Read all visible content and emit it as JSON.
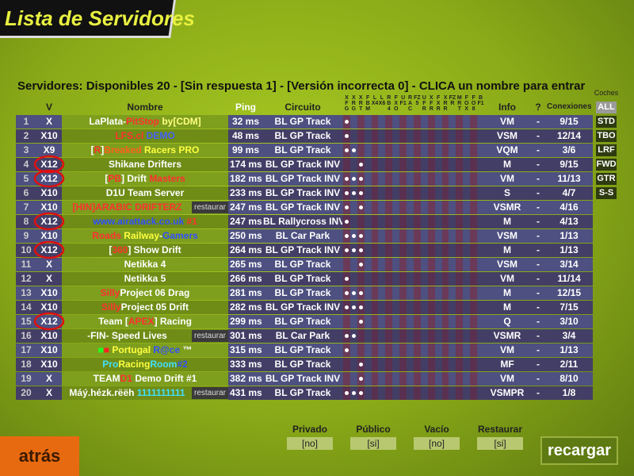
{
  "title": "Lista de Servidores",
  "status": "Servidores: Disponibles 20 - [Sin respuesta 1] - [Versión incorrecta 0] - CLICA un nombre para entrar",
  "headers": {
    "v": "V",
    "name": "Nombre",
    "ping": "Ping",
    "circuit": "Circuito",
    "info": "Info",
    "help": "?",
    "conns": "Conexiones"
  },
  "car_columns": [
    "XFG",
    "XRG",
    "XRT",
    "FBM",
    "LX4",
    "LX6",
    "RB4",
    "FXO",
    "UF1",
    "RAC",
    "FZ5",
    "UFR",
    "XFR",
    "FXR",
    "XRR",
    "FZR",
    "MRT",
    "FOX",
    "FO8",
    "BF1"
  ],
  "rows": [
    {
      "num": 1,
      "v": "X",
      "name": [
        {
          "text": "LaPlata-",
          "color": "#ffffff"
        },
        {
          "text": "PitStop",
          "color": "#ff3030"
        },
        {
          "text": " by[CDM]",
          "color": "#ffff80"
        }
      ],
      "ping": "32 ms",
      "circuit": "BL GP Track",
      "cars": [
        0
      ],
      "info": "VM",
      "help": "-",
      "conns": "9/15"
    },
    {
      "num": 2,
      "v": "X10",
      "name": [
        {
          "text": "LFS.cl",
          "color": "#ff3030"
        },
        {
          "text": " DEMO",
          "color": "#4060ff"
        }
      ],
      "ping": "48 ms",
      "circuit": "BL GP Track",
      "cars": [
        0
      ],
      "info": "VSM",
      "help": "-",
      "conns": "12/14"
    },
    {
      "num": 3,
      "v": "X9",
      "name": [
        {
          "text": "[",
          "color": "#ffffff"
        },
        {
          "text": "R",
          "color": "#ff3030"
        },
        {
          "text": "]",
          "color": "#ffffff"
        },
        {
          "text": "Breaked",
          "color": "#ff6020"
        },
        {
          "text": " Racers PRO",
          "color": "#ffff40"
        }
      ],
      "ping": "99 ms",
      "circuit": "BL GP Track",
      "cars": [
        0,
        1
      ],
      "info": "VQM",
      "help": "-",
      "conns": "3/6"
    },
    {
      "num": 4,
      "v": "X12",
      "name": [
        {
          "text": "Shikane Drifters",
          "color": "#ffffff"
        }
      ],
      "ping": "174 ms",
      "circuit": "BL GP Track INV",
      "cars": [
        2
      ],
      "info": "M",
      "help": "-",
      "conns": "9/15"
    },
    {
      "num": 5,
      "v": "X12",
      "name": [
        {
          "text": "[",
          "color": "#ffffff"
        },
        {
          "text": "PB",
          "color": "#ff3030"
        },
        {
          "text": "] Drift ",
          "color": "#ffffff"
        },
        {
          "text": "Masters",
          "color": "#ff3030"
        }
      ],
      "ping": "182 ms",
      "circuit": "BL GP Track INV",
      "cars": [
        0,
        1,
        2
      ],
      "info": "VM",
      "help": "-",
      "conns": "11/13"
    },
    {
      "num": 6,
      "v": "X10",
      "name": [
        {
          "text": "D1U Team Server",
          "color": "#ffffff"
        }
      ],
      "ping": "233 ms",
      "circuit": "BL GP Track INV",
      "cars": [
        0,
        1,
        2
      ],
      "info": "S",
      "help": "-",
      "conns": "4/7"
    },
    {
      "num": 7,
      "v": "X10",
      "name": [
        {
          "text": "[HIN]ARABIC DRIFTERZ",
          "color": "#ff3030"
        }
      ],
      "tag": "restaurar",
      "ping": "247 ms",
      "circuit": "BL GP Track INV",
      "cars": [
        0,
        2
      ],
      "info": "VSMR",
      "help": "-",
      "conns": "4/16"
    },
    {
      "num": 8,
      "v": "X12",
      "name": [
        {
          "text": "www.airattack.co.uk",
          "color": "#3050ff"
        },
        {
          "text": " #1",
          "color": "#ff3030"
        }
      ],
      "ping": "247 ms",
      "circuit": "BL Rallycross INV",
      "cars": [
        0
      ],
      "info": "M",
      "help": "-",
      "conns": "4/13"
    },
    {
      "num": 9,
      "v": "X10",
      "name": [
        {
          "text": "Roads ",
          "color": "#ff3030"
        },
        {
          "text": "Railway",
          "color": "#ffff40"
        },
        {
          "text": "-",
          "color": "#ffffff"
        },
        {
          "text": "Gamers",
          "color": "#3050ff"
        }
      ],
      "ping": "250 ms",
      "circuit": "BL Car Park",
      "cars": [
        0,
        1,
        2
      ],
      "info": "VSM",
      "help": "-",
      "conns": "1/13"
    },
    {
      "num": 10,
      "v": "X12",
      "name": [
        {
          "text": "[",
          "color": "#ffffff"
        },
        {
          "text": "360",
          "color": "#ff3030"
        },
        {
          "text": "] Show Drift",
          "color": "#ffffff"
        }
      ],
      "ping": "264 ms",
      "circuit": "BL GP Track INV",
      "cars": [
        0,
        1,
        2
      ],
      "info": "M",
      "help": "-",
      "conns": "1/13"
    },
    {
      "num": 11,
      "v": "X",
      "name": [
        {
          "text": "Netikka 4",
          "color": "#ffffff"
        }
      ],
      "ping": "265 ms",
      "circuit": "BL GP Track",
      "cars": [
        2
      ],
      "info": "VSM",
      "help": "-",
      "conns": "3/14"
    },
    {
      "num": 12,
      "v": "X",
      "name": [
        {
          "text": "Netikka 5",
          "color": "#ffffff"
        }
      ],
      "ping": "266 ms",
      "circuit": "BL GP Track",
      "cars": [
        0
      ],
      "info": "VM",
      "help": "-",
      "conns": "11/14"
    },
    {
      "num": 13,
      "v": "X10",
      "name": [
        {
          "text": "Silly",
          "color": "#ff3030"
        },
        {
          "text": "Project 06 Drag",
          "color": "#ffffff"
        }
      ],
      "ping": "281 ms",
      "circuit": "BL GP Track",
      "cars": [
        0,
        1,
        2
      ],
      "info": "M",
      "help": "-",
      "conns": "12/15"
    },
    {
      "num": 14,
      "v": "X10",
      "name": [
        {
          "text": "Silly",
          "color": "#ff3030"
        },
        {
          "text": "Project 05 Drift",
          "color": "#ffffff"
        }
      ],
      "ping": "282 ms",
      "circuit": "BL GP Track INV",
      "cars": [
        0,
        1,
        2
      ],
      "info": "M",
      "help": "-",
      "conns": "7/15"
    },
    {
      "num": 15,
      "v": "X12",
      "name": [
        {
          "text": "Team [",
          "color": "#ffffff"
        },
        {
          "text": "APEX",
          "color": "#ff3030"
        },
        {
          "text": "] Racing",
          "color": "#ffffff"
        }
      ],
      "ping": "299 ms",
      "circuit": "BL GP Track",
      "cars": [
        2
      ],
      "info": "Q",
      "help": "-",
      "conns": "3/10"
    },
    {
      "num": 16,
      "v": "X10",
      "name": [
        {
          "text": "-FIN- Speed Lives",
          "color": "#ffffff"
        }
      ],
      "tag": "restaurar",
      "ping": "301 ms",
      "circuit": "BL Car Park",
      "cars": [
        0,
        1
      ],
      "info": "VSMR",
      "help": "-",
      "conns": "3/4"
    },
    {
      "num": 17,
      "v": "X10",
      "name": [
        {
          "text": "■",
          "color": "#20ff20"
        },
        {
          "text": "■",
          "color": "#ff2020"
        },
        {
          "text": " Portugal",
          "color": "#ffff40"
        },
        {
          "text": " R@ce",
          "color": "#3050ff"
        },
        {
          "text": " ™",
          "color": "#ffffff"
        }
      ],
      "ping": "315 ms",
      "circuit": "BL GP Track",
      "cars": [
        0
      ],
      "info": "VM",
      "help": "-",
      "conns": "1/13"
    },
    {
      "num": 18,
      "v": "X10",
      "name": [
        {
          "text": "Pro",
          "color": "#40e0ff"
        },
        {
          "text": "Racing",
          "color": "#ffff40"
        },
        {
          "text": "Room",
          "color": "#40e0ff"
        },
        {
          "text": "#2",
          "color": "#3050ff"
        }
      ],
      "ping": "333 ms",
      "circuit": "BL GP Track",
      "cars": [
        2
      ],
      "info": "MF",
      "help": "-",
      "conns": "2/11"
    },
    {
      "num": 19,
      "v": "X",
      "name": [
        {
          "text": "TEAM",
          "color": "#ffffff"
        },
        {
          "text": "D1",
          "color": "#ff3030"
        },
        {
          "text": " Demo Drift #1",
          "color": "#ffffff"
        }
      ],
      "ping": "382 ms",
      "circuit": "BL GP Track INV",
      "cars": [
        2
      ],
      "info": "VM",
      "help": "-",
      "conns": "8/10"
    },
    {
      "num": 20,
      "v": "X",
      "name": [
        {
          "text": "Máý.hézk.rëëh ",
          "color": "#ffffff"
        },
        {
          "text": "1111111111",
          "color": "#40e0ff"
        }
      ],
      "tag": "restaurar",
      "ping": "431 ms",
      "circuit": "BL GP Track",
      "cars": [
        0,
        1,
        2
      ],
      "info": "VSMPR",
      "help": "-",
      "conns": "1/8"
    }
  ],
  "car_filter": {
    "title": "Coches",
    "buttons": [
      "ALL",
      "STD",
      "TBO",
      "LRF",
      "FWD",
      "GTR",
      "S-S"
    ]
  },
  "filters": [
    {
      "label": "Privado",
      "value": "[no]"
    },
    {
      "label": "Público",
      "value": "[si]"
    },
    {
      "label": "Vacío",
      "value": "[no]"
    },
    {
      "label": "Restaurar",
      "value": "[si]"
    }
  ],
  "buttons": {
    "back": "atrás",
    "reload": "recargar"
  }
}
